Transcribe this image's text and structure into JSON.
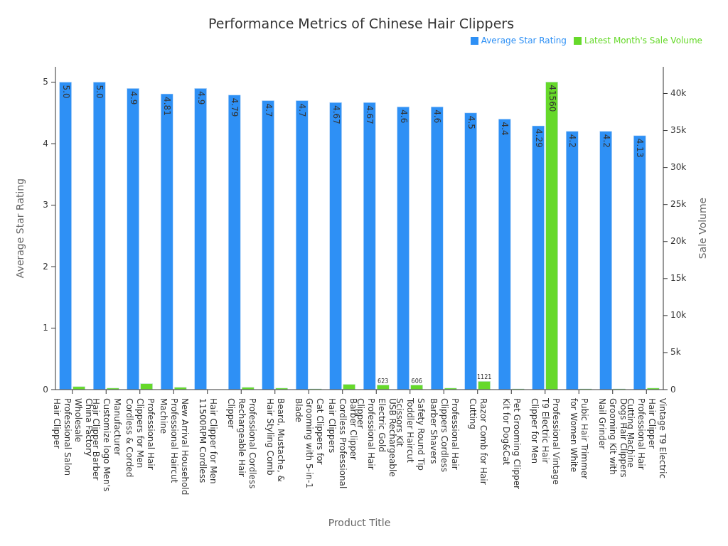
{
  "chart_data": {
    "type": "bar",
    "title": "Performance Metrics of Chinese Hair Clippers",
    "xlabel": "Product Title",
    "ylabel": "Average Star Rating",
    "y2label": "Sale Volume",
    "categories": [
      "China Factory Wholesale Professional Salon Hair Clipper",
      "Manufacturer Customize logo Men's Hair Clipper Barber",
      "Professional Hair Clippers for Men Cordless & Corded",
      "New Arrival Household Professional Haircut Machine",
      "Hair Clipper for Men 11500RPM Cordless",
      "Professional Cordless Rechargeable Hair Clipper",
      "Beard, Mustache, & Hair Styling Comb",
      "Cat Clippers for Grooming with 5-in-1 Blade",
      "Barber Clipper Cordless Professional Hair Clippers",
      "USB Rechargeable Electric Gold Professional Hair Clipper",
      "Safety Round Tip Toddler Haircut Scissors Kit",
      "Professional Hair Clippers Cordless Barber Shavers",
      "Razor Comb for Hair Cutting",
      "Pet Grooming Clipper Kit for Dog&Cat",
      "Professional Vintage T9 Electric Hair Clipper for Men",
      "Pubic Hair Trimmer for Women White",
      "Dogs Hair Clippers Grooming Kit with Nail Grinder",
      "Vintage T9 Electric Hair Clipper Professional Hair Cutting Machine"
    ],
    "series": [
      {
        "name": "Average Star Rating",
        "color": "#2e90f5",
        "values": [
          5.0,
          5.0,
          4.9,
          4.81,
          4.9,
          4.79,
          4.7,
          4.7,
          4.67,
          4.67,
          4.6,
          4.6,
          4.5,
          4.4,
          4.29,
          4.2,
          4.2,
          4.13
        ],
        "value_labels": [
          "5.0",
          "5.0",
          "4.9",
          "4.81",
          "4.9",
          "4.79",
          "4.7",
          "4.7",
          "4.67",
          "4.67",
          "4.6",
          "4.6",
          "4.5",
          "4.4",
          "4.29",
          "4.2",
          "4.2",
          "4.13"
        ]
      },
      {
        "name": "Latest Month's Sale Volume",
        "color": "#66d92a",
        "axis": "y2",
        "values": [
          400,
          200,
          800,
          300,
          0,
          300,
          200,
          100,
          700,
          623,
          606,
          200,
          1121,
          100,
          41560,
          100,
          100,
          200
        ],
        "value_labels": [
          null,
          null,
          null,
          null,
          null,
          null,
          null,
          null,
          null,
          "623",
          "606",
          null,
          "1121",
          null,
          "41560",
          null,
          null,
          null
        ]
      }
    ],
    "ylim": [
      0,
      5.25
    ],
    "yticks": [
      0,
      1,
      2,
      3,
      4,
      5
    ],
    "y2lim": [
      0,
      43600
    ],
    "y2ticks": [
      0,
      {
        "value": 5000,
        "label": "5k"
      },
      {
        "value": 10000,
        "label": "10k"
      },
      {
        "value": 15000,
        "label": "15k"
      },
      {
        "value": 20000,
        "label": "20k"
      },
      {
        "value": 25000,
        "label": "25k"
      },
      {
        "value": 30000,
        "label": "30k"
      },
      {
        "value": 35000,
        "label": "35k"
      },
      {
        "value": 40000,
        "label": "40k"
      }
    ],
    "grid": false,
    "legend": "top right"
  }
}
